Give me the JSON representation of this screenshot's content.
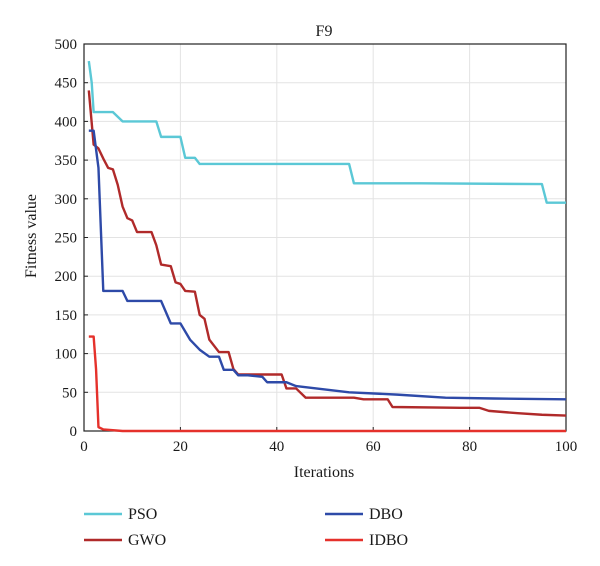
{
  "chart_data": {
    "type": "line",
    "title": "F9",
    "xlabel": "Iterations",
    "ylabel": "Fitness value",
    "xlim": [
      0,
      100
    ],
    "ylim": [
      0,
      500
    ],
    "xticks": [
      0,
      20,
      40,
      60,
      80,
      100
    ],
    "yticks": [
      0,
      50,
      100,
      150,
      200,
      250,
      300,
      350,
      400,
      450,
      500
    ],
    "grid": true,
    "legend_position": "bottom",
    "series": [
      {
        "name": "PSO",
        "color": "#5bc8d6",
        "points": [
          [
            1,
            478
          ],
          [
            1.6,
            450
          ],
          [
            2,
            412
          ],
          [
            6,
            412
          ],
          [
            8,
            400
          ],
          [
            15,
            400
          ],
          [
            16,
            380
          ],
          [
            20,
            380
          ],
          [
            21,
            353
          ],
          [
            23,
            353
          ],
          [
            24,
            345
          ],
          [
            55,
            345
          ],
          [
            56,
            320
          ],
          [
            70,
            320
          ],
          [
            95,
            319
          ],
          [
            96,
            295
          ],
          [
            100,
            295
          ]
        ]
      },
      {
        "name": "GWO",
        "color": "#b02a2a",
        "points": [
          [
            1,
            440
          ],
          [
            2,
            370
          ],
          [
            3,
            365
          ],
          [
            4,
            352
          ],
          [
            5,
            340
          ],
          [
            6,
            338
          ],
          [
            7,
            318
          ],
          [
            8,
            290
          ],
          [
            9,
            275
          ],
          [
            10,
            272
          ],
          [
            11,
            257
          ],
          [
            14,
            257
          ],
          [
            15,
            240
          ],
          [
            16,
            215
          ],
          [
            18,
            213
          ],
          [
            19,
            192
          ],
          [
            20,
            190
          ],
          [
            21,
            181
          ],
          [
            23,
            180
          ],
          [
            24,
            150
          ],
          [
            25,
            145
          ],
          [
            26,
            118
          ],
          [
            28,
            102
          ],
          [
            30,
            102
          ],
          [
            31,
            80
          ],
          [
            32,
            73
          ],
          [
            41,
            73
          ],
          [
            42,
            55
          ],
          [
            44,
            55
          ],
          [
            46,
            43
          ],
          [
            56,
            43
          ],
          [
            58,
            41
          ],
          [
            63,
            41
          ],
          [
            64,
            31
          ],
          [
            78,
            30
          ],
          [
            82,
            30
          ],
          [
            84,
            26
          ],
          [
            90,
            23
          ],
          [
            95,
            21
          ],
          [
            100,
            20
          ]
        ]
      },
      {
        "name": "DBO",
        "color": "#2e4aa8",
        "points": [
          [
            1,
            388
          ],
          [
            2,
            388
          ],
          [
            3,
            340
          ],
          [
            4,
            181
          ],
          [
            8,
            181
          ],
          [
            9,
            168
          ],
          [
            16,
            168
          ],
          [
            18,
            139
          ],
          [
            20,
            139
          ],
          [
            22,
            118
          ],
          [
            24,
            105
          ],
          [
            26,
            96
          ],
          [
            28,
            96
          ],
          [
            29,
            79
          ],
          [
            31,
            79
          ],
          [
            32,
            72
          ],
          [
            34,
            72
          ],
          [
            37,
            70
          ],
          [
            38,
            63
          ],
          [
            42,
            63
          ],
          [
            44,
            58
          ],
          [
            55,
            50
          ],
          [
            65,
            47
          ],
          [
            75,
            43
          ],
          [
            85,
            42
          ],
          [
            100,
            41
          ]
        ]
      },
      {
        "name": "IDBO",
        "color": "#e5312b",
        "points": [
          [
            1,
            122
          ],
          [
            2,
            122
          ],
          [
            2.5,
            80
          ],
          [
            3,
            5
          ],
          [
            4,
            2
          ],
          [
            6,
            1
          ],
          [
            8,
            0
          ],
          [
            100,
            0
          ]
        ]
      }
    ]
  }
}
